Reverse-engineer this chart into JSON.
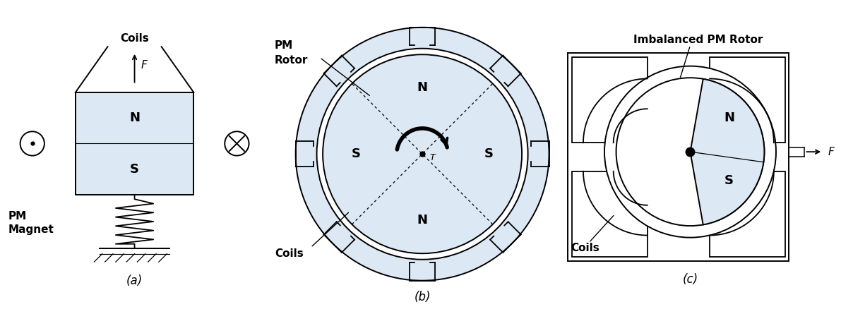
{
  "fig_width": 11.91,
  "fig_height": 4.45,
  "dpi": 100,
  "bg_color": "#ffffff",
  "light_blue": "#dce8f4",
  "panel_labels": [
    "(a)",
    "(b)",
    "(c)"
  ],
  "label_fontsize": 12,
  "text_fontsize": 11,
  "bold_fontsize": 13
}
